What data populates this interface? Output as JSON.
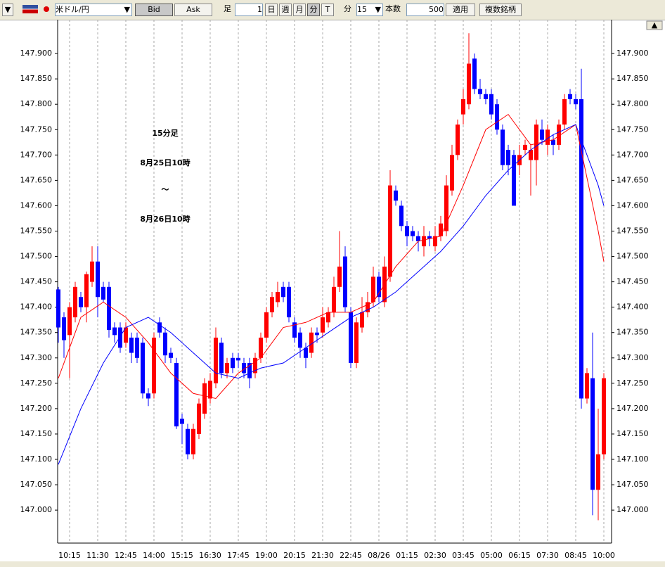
{
  "toolbar": {
    "symbol": "米ドル/円",
    "bid": "Bid",
    "ask": "Ask",
    "bar_label": "足",
    "bar_count": "1",
    "day": "日",
    "week": "週",
    "month": "月",
    "minute": "分",
    "tick": "T",
    "interval_label": "分",
    "interval": "15",
    "count_label": "本数",
    "count": "500",
    "apply": "適用",
    "multi": "複数銘柄"
  },
  "chart_data": {
    "type": "candlestick",
    "annotation": [
      "15分足",
      "8月25日10時",
      "〜",
      "8月26日10時"
    ],
    "up_color": "#ff0000",
    "down_color": "#0000ff",
    "categories": [
      null,
      null,
      "10:15",
      null,
      null,
      null,
      null,
      "11:30",
      null,
      null,
      null,
      null,
      "12:45",
      null,
      null,
      null,
      null,
      "14:00",
      null,
      null,
      null,
      null,
      "15:15",
      null,
      null,
      null,
      null,
      "16:30",
      null,
      null,
      null,
      null,
      "17:45",
      null,
      null,
      null,
      null,
      "19:00",
      null,
      null,
      null,
      null,
      "20:15",
      null,
      null,
      null,
      null,
      "21:30",
      null,
      null,
      null,
      null,
      "22:45",
      null,
      null,
      null,
      null,
      "08/26",
      null,
      null,
      null,
      null,
      "01:15",
      null,
      null,
      null,
      null,
      "02:30",
      null,
      null,
      null,
      null,
      "03:45",
      null,
      null,
      null,
      null,
      "05:00",
      null,
      null,
      null,
      null,
      "06:15",
      null,
      null,
      null,
      null,
      "07:30",
      null,
      null,
      null,
      null,
      "08:45",
      null,
      null,
      null,
      null,
      "10:00"
    ],
    "open": [
      147.435,
      147.38,
      147.345,
      147.38,
      147.42,
      147.4,
      147.45,
      147.49,
      147.44,
      147.44,
      147.36,
      147.36,
      147.33,
      147.34,
      147.34,
      147.33,
      147.23,
      147.23,
      147.37,
      147.35,
      147.31,
      147.29,
      147.18,
      147.16,
      147.11,
      147.15,
      147.19,
      147.22,
      147.25,
      147.33,
      147.27,
      147.3,
      147.3,
      147.29,
      147.29,
      147.27,
      147.3,
      147.34,
      147.39,
      147.41,
      147.44,
      147.44,
      147.37,
      147.35,
      147.32,
      147.31,
      147.35,
      147.35,
      147.37,
      147.39,
      147.44,
      147.5,
      147.39,
      147.29,
      147.36,
      147.39,
      147.41,
      147.46,
      147.41,
      147.46,
      147.63,
      147.6,
      147.56,
      147.55,
      147.54,
      147.52,
      147.54,
      147.52,
      147.54,
      147.55,
      147.63,
      147.7,
      147.78,
      147.8,
      147.89,
      147.83,
      147.82,
      147.82,
      147.8,
      147.75,
      147.71,
      147.7,
      147.68,
      147.71,
      147.69,
      147.69,
      147.75,
      147.72,
      147.73,
      147.72,
      147.76,
      147.82,
      147.81,
      147.81,
      147.22,
      147.26,
      147.04,
      147.11
    ],
    "high": [
      147.44,
      147.39,
      147.41,
      147.45,
      147.43,
      147.47,
      147.52,
      147.52,
      147.45,
      147.45,
      147.37,
      147.37,
      147.37,
      147.35,
      147.35,
      147.34,
      147.24,
      147.35,
      147.38,
      147.36,
      147.32,
      147.3,
      147.19,
      147.17,
      147.17,
      147.22,
      147.26,
      147.27,
      147.36,
      147.34,
      147.3,
      147.31,
      147.31,
      147.3,
      147.3,
      147.31,
      147.35,
      147.4,
      147.43,
      147.45,
      147.45,
      147.45,
      147.38,
      147.36,
      147.33,
      147.36,
      147.36,
      147.4,
      147.4,
      147.46,
      147.55,
      147.52,
      147.4,
      147.38,
      147.42,
      147.43,
      147.48,
      147.47,
      147.5,
      147.67,
      147.64,
      147.61,
      147.57,
      147.56,
      147.55,
      147.56,
      147.55,
      147.56,
      147.58,
      147.66,
      147.72,
      147.77,
      147.83,
      147.94,
      147.9,
      147.85,
      147.83,
      147.83,
      147.81,
      147.76,
      147.72,
      147.71,
      147.72,
      147.73,
      147.72,
      147.77,
      147.77,
      147.76,
      147.74,
      147.77,
      147.82,
      147.83,
      147.82,
      147.87,
      147.28,
      147.35,
      147.2,
      147.27
    ],
    "low": [
      147.33,
      147.3,
      147.26,
      147.37,
      147.39,
      147.37,
      147.44,
      147.38,
      147.41,
      147.34,
      147.33,
      147.31,
      147.32,
      147.29,
      147.29,
      147.22,
      147.205,
      147.22,
      147.34,
      147.29,
      147.29,
      147.16,
      147.13,
      147.1,
      147.1,
      147.14,
      147.18,
      147.21,
      147.24,
      147.26,
      147.26,
      147.27,
      147.28,
      147.26,
      147.24,
      147.26,
      147.29,
      147.33,
      147.38,
      147.4,
      147.41,
      147.37,
      147.33,
      147.3,
      147.28,
      147.3,
      147.33,
      147.34,
      147.36,
      147.38,
      147.43,
      147.39,
      147.28,
      147.28,
      147.35,
      147.38,
      147.4,
      147.41,
      147.4,
      147.45,
      147.6,
      147.55,
      147.52,
      147.53,
      147.51,
      147.5,
      147.52,
      147.51,
      147.53,
      147.54,
      147.62,
      147.69,
      147.76,
      147.79,
      147.82,
      147.81,
      147.8,
      147.77,
      147.74,
      147.67,
      147.66,
      147.6,
      147.66,
      147.7,
      147.62,
      147.64,
      147.72,
      147.7,
      147.7,
      147.71,
      147.75,
      147.8,
      147.79,
      147.2,
      147.21,
      146.99,
      146.98,
      147.1
    ],
    "close": [
      147.36,
      147.335,
      147.4,
      147.44,
      147.4,
      147.465,
      147.49,
      147.42,
      147.415,
      147.355,
      147.345,
      147.32,
      147.36,
      147.31,
      147.3,
      147.23,
      147.22,
      147.34,
      147.35,
      147.305,
      147.3,
      147.165,
      147.17,
      147.11,
      147.16,
      147.21,
      147.25,
      147.255,
      147.34,
      147.27,
      147.29,
      147.28,
      147.295,
      147.27,
      147.26,
      147.3,
      147.34,
      147.39,
      147.42,
      147.43,
      147.42,
      147.38,
      147.34,
      147.32,
      147.3,
      147.35,
      147.345,
      147.38,
      147.39,
      147.44,
      147.48,
      147.4,
      147.29,
      147.37,
      147.39,
      147.41,
      147.46,
      147.42,
      147.48,
      147.64,
      147.61,
      147.56,
      147.54,
      147.54,
      147.53,
      147.54,
      147.535,
      147.54,
      147.565,
      147.64,
      147.7,
      147.76,
      147.81,
      147.88,
      147.83,
      147.82,
      147.81,
      147.78,
      147.75,
      147.68,
      147.68,
      147.6,
      147.7,
      147.72,
      147.71,
      147.76,
      147.73,
      147.75,
      147.72,
      147.76,
      147.81,
      147.81,
      147.8,
      147.22,
      147.27,
      147.04,
      147.11,
      147.26
    ],
    "lines": [
      {
        "color": "#ff0000",
        "x": [
          0,
          4,
          8,
          12,
          16,
          20,
          24,
          28,
          32,
          36,
          40,
          44,
          48,
          52,
          56,
          60,
          64,
          68,
          72,
          76,
          80,
          84,
          88,
          92,
          96,
          97
        ],
        "values": [
          147.26,
          147.38,
          147.41,
          147.38,
          147.33,
          147.27,
          147.23,
          147.22,
          147.27,
          147.3,
          147.36,
          147.37,
          147.39,
          147.39,
          147.41,
          147.48,
          147.53,
          147.54,
          147.64,
          147.75,
          147.78,
          147.72,
          147.73,
          147.76,
          147.55,
          147.49
        ]
      },
      {
        "color": "#0000ff",
        "x": [
          0,
          4,
          8,
          12,
          16,
          20,
          24,
          28,
          32,
          36,
          40,
          44,
          48,
          52,
          56,
          60,
          64,
          68,
          72,
          76,
          80,
          84,
          88,
          92,
          96,
          97
        ],
        "values": [
          147.09,
          147.2,
          147.29,
          147.36,
          147.38,
          147.35,
          147.31,
          147.27,
          147.26,
          147.28,
          147.29,
          147.32,
          147.35,
          147.38,
          147.4,
          147.43,
          147.47,
          147.51,
          147.56,
          147.62,
          147.67,
          147.71,
          147.74,
          147.76,
          147.64,
          147.6
        ]
      }
    ],
    "ylim": [
      146.935,
      147.975
    ],
    "yticks": [
      {
        "value": 147.0,
        "label": "147.000"
      },
      {
        "value": 147.05,
        "label": "147.050"
      },
      {
        "value": 147.1,
        "label": "147.100"
      },
      {
        "value": 147.15,
        "label": "147.150"
      },
      {
        "value": 147.2,
        "label": "147.200"
      },
      {
        "value": 147.25,
        "label": "147.250"
      },
      {
        "value": 147.3,
        "label": "147.300"
      },
      {
        "value": 147.35,
        "label": "147.350"
      },
      {
        "value": 147.4,
        "label": "147.400"
      },
      {
        "value": 147.45,
        "label": "147.450"
      },
      {
        "value": 147.5,
        "label": "147.500"
      },
      {
        "value": 147.55,
        "label": "147.550"
      },
      {
        "value": 147.6,
        "label": "147.600"
      },
      {
        "value": 147.65,
        "label": "147.650"
      },
      {
        "value": 147.7,
        "label": "147.700"
      },
      {
        "value": 147.75,
        "label": "147.750"
      },
      {
        "value": 147.8,
        "label": "147.800"
      },
      {
        "value": 147.85,
        "label": "147.850"
      },
      {
        "value": 147.9,
        "label": "147.900"
      }
    ]
  }
}
